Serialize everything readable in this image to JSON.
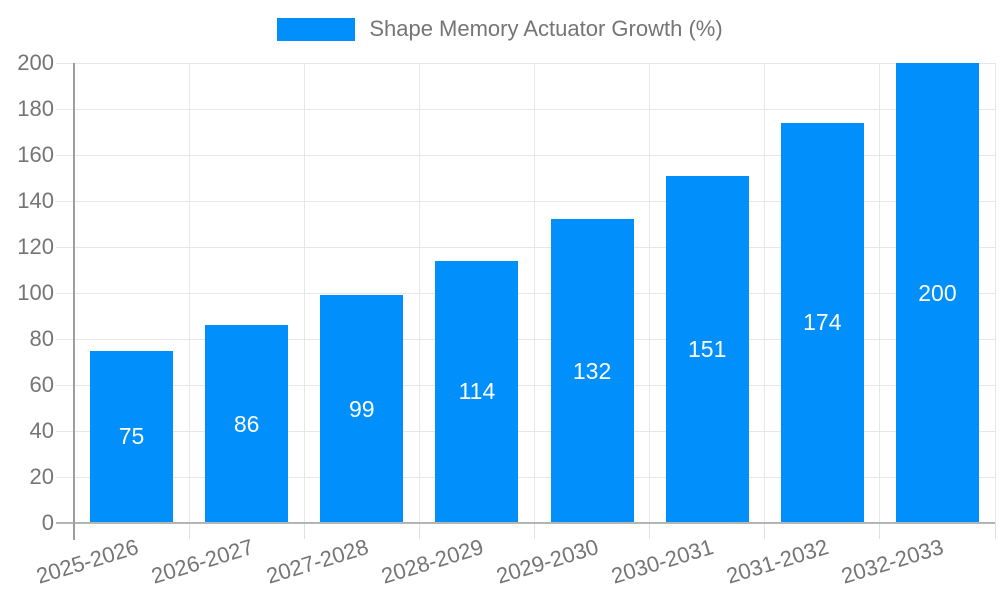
{
  "legend": {
    "label": "Shape Memory Actuator Growth (%)",
    "swatch_color": "#008ffb"
  },
  "chart_data": {
    "type": "bar",
    "title": "Shape Memory Actuator Growth (%)",
    "categories": [
      "2025-2026",
      "2026-2027",
      "2027-2028",
      "2028-2029",
      "2029-2030",
      "2030-2031",
      "2031-2032",
      "2032-2033"
    ],
    "values": [
      75,
      86,
      99,
      114,
      132,
      151,
      174,
      200
    ],
    "xlabel": "",
    "ylabel": "",
    "ylim": [
      0,
      200
    ],
    "yticks": [
      0,
      20,
      40,
      60,
      80,
      100,
      120,
      140,
      160,
      180,
      200
    ],
    "grid": true,
    "legend_position": "top",
    "bar_color": "#008ffb",
    "value_label_color": "#ffffff",
    "axis_label_color": "#757575",
    "grid_color": "#e7e7e7"
  }
}
